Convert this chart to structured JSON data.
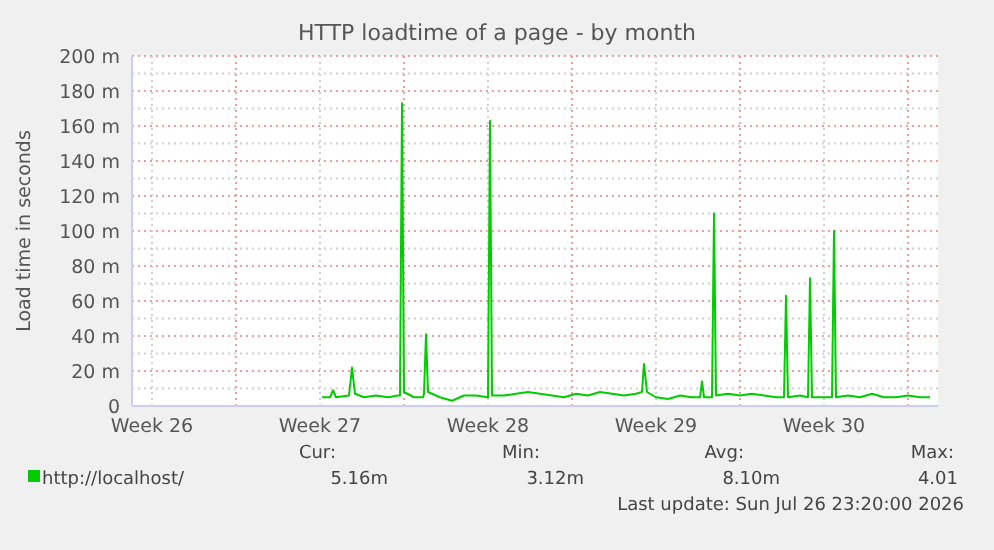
{
  "chart_data": {
    "type": "line",
    "title": "HTTP loadtime of a page - by month",
    "ylabel": "Load time in seconds",
    "xlim": [
      "2026-06-23T16:00",
      "2026-07-27T06:00"
    ],
    "ylim": [
      0,
      200
    ],
    "xticks": [
      {
        "value": "2026-06-24T12:00",
        "label": "Week 26"
      },
      {
        "value": "2026-06-28T00:00",
        "label": null
      },
      {
        "value": "2026-07-01T12:00",
        "label": "Week 27"
      },
      {
        "value": "2026-07-05T00:00",
        "label": null
      },
      {
        "value": "2026-07-08T12:00",
        "label": "Week 28"
      },
      {
        "value": "2026-07-12T00:00",
        "label": null
      },
      {
        "value": "2026-07-15T12:00",
        "label": "Week 29"
      },
      {
        "value": "2026-07-19T00:00",
        "label": null
      },
      {
        "value": "2026-07-22T12:00",
        "label": "Week 30"
      },
      {
        "value": "2026-07-26T00:00",
        "label": null
      }
    ],
    "yticks": [
      {
        "value": 0,
        "label": "0"
      },
      {
        "value": 10,
        "label": null
      },
      {
        "value": 20,
        "label": "20 m"
      },
      {
        "value": 30,
        "label": null
      },
      {
        "value": 40,
        "label": "40 m"
      },
      {
        "value": 50,
        "label": null
      },
      {
        "value": 60,
        "label": "60 m"
      },
      {
        "value": 70,
        "label": null
      },
      {
        "value": 80,
        "label": "80 m"
      },
      {
        "value": 90,
        "label": null
      },
      {
        "value": 100,
        "label": "100 m"
      },
      {
        "value": 110,
        "label": null
      },
      {
        "value": 120,
        "label": "120 m"
      },
      {
        "value": 130,
        "label": null
      },
      {
        "value": 140,
        "label": "140 m"
      },
      {
        "value": 150,
        "label": null
      },
      {
        "value": 160,
        "label": "160 m"
      },
      {
        "value": 170,
        "label": null
      },
      {
        "value": 180,
        "label": "180 m"
      },
      {
        "value": 190,
        "label": null
      },
      {
        "value": 200,
        "label": "200 m"
      }
    ],
    "grid": true,
    "legend": "bottom left",
    "marker": "none",
    "line_style": "solid",
    "series": [
      {
        "name": "http://localhost/",
        "color": "#00cc00",
        "x": [
          "2026-07-01T14:00",
          "2026-07-01T22:00",
          "2026-07-02T01:00",
          "2026-07-02T04:00",
          "2026-07-02T17:00",
          "2026-07-02T20:00",
          "2026-07-02T23:00",
          "2026-07-03T08:00",
          "2026-07-03T20:00",
          "2026-07-04T08:00",
          "2026-07-04T18:00",
          "2026-07-04T20:00",
          "2026-07-04T22:00",
          "2026-07-05T00:00",
          "2026-07-05T10:00",
          "2026-07-05T19:00",
          "2026-07-05T20:00",
          "2026-07-05T22:00",
          "2026-07-06T00:00",
          "2026-07-06T12:00",
          "2026-07-07T00:00",
          "2026-07-07T12:00",
          "2026-07-08T00:00",
          "2026-07-08T12:00",
          "2026-07-08T14:00",
          "2026-07-08T16:00",
          "2026-07-09T04:00",
          "2026-07-09T16:00",
          "2026-07-10T04:00",
          "2026-07-10T16:00",
          "2026-07-11T04:00",
          "2026-07-11T16:00",
          "2026-07-12T04:00",
          "2026-07-12T16:00",
          "2026-07-13T04:00",
          "2026-07-13T16:00",
          "2026-07-14T04:00",
          "2026-07-14T16:00",
          "2026-07-14T22:00",
          "2026-07-15T00:00",
          "2026-07-15T03:00",
          "2026-07-15T12:00",
          "2026-07-16T00:00",
          "2026-07-16T12:00",
          "2026-07-17T00:00",
          "2026-07-17T08:00",
          "2026-07-17T10:00",
          "2026-07-17T12:00",
          "2026-07-17T20:00",
          "2026-07-17T22:00",
          "2026-07-18T00:00",
          "2026-07-18T12:00",
          "2026-07-19T00:00",
          "2026-07-19T12:00",
          "2026-07-20T00:00",
          "2026-07-20T12:00",
          "2026-07-20T20:00",
          "2026-07-20T22:00",
          "2026-07-21T00:00",
          "2026-07-21T12:00",
          "2026-07-21T20:00",
          "2026-07-21T22:00",
          "2026-07-22T00:00",
          "2026-07-22T12:00",
          "2026-07-22T20:00",
          "2026-07-22T22:00",
          "2026-07-23T00:00",
          "2026-07-23T12:00",
          "2026-07-24T00:00",
          "2026-07-24T12:00",
          "2026-07-25T00:00",
          "2026-07-25T12:00",
          "2026-07-26T00:00",
          "2026-07-26T12:00",
          "2026-07-26T22:00"
        ],
        "values": [
          5,
          5,
          9,
          5,
          6,
          22,
          7,
          5,
          6,
          5,
          6,
          6,
          173,
          8,
          5,
          5,
          7,
          41,
          8,
          5,
          3,
          6,
          6,
          5,
          163,
          6,
          6,
          7,
          8,
          7,
          6,
          5,
          7,
          6,
          8,
          7,
          6,
          7,
          8,
          24,
          8,
          5,
          4,
          6,
          5,
          5,
          14,
          5,
          5,
          110,
          6,
          7,
          6,
          7,
          6,
          5,
          5,
          63,
          5,
          6,
          5,
          73,
          5,
          5,
          5,
          100,
          5,
          6,
          5,
          7,
          5,
          5,
          6,
          5,
          5
        ]
      }
    ],
    "annotations": [
      "Cur:",
      "Min:",
      "Avg:",
      "Max:",
      "5.16m",
      "3.12m",
      "8.10m",
      "4.01",
      "Last update: Sun Jul 26 23:20:00 2026"
    ]
  }
}
